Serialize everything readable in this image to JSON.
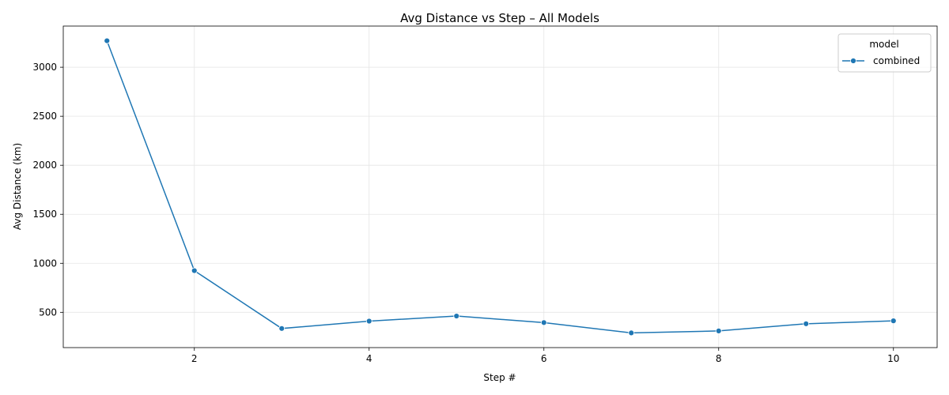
{
  "chart_data": {
    "type": "line",
    "title": "Avg Distance vs Step – All Models",
    "xlabel": "Step #",
    "ylabel": "Avg Distance (km)",
    "xlim": [
      0.5,
      10.5
    ],
    "ylim": [
      140,
      3420
    ],
    "x_ticks": [
      2,
      4,
      6,
      8,
      10
    ],
    "y_ticks": [
      500,
      1000,
      1500,
      2000,
      2500,
      3000
    ],
    "grid": true,
    "legend": {
      "title": "model",
      "placement": "top-right"
    },
    "series": [
      {
        "name": "combined",
        "color": "#1f77b4",
        "marker": "circle",
        "x": [
          1,
          2,
          3,
          4,
          5,
          6,
          7,
          8,
          9,
          10
        ],
        "y": [
          3270,
          925,
          335,
          410,
          462,
          395,
          290,
          310,
          383,
          413
        ]
      }
    ]
  }
}
